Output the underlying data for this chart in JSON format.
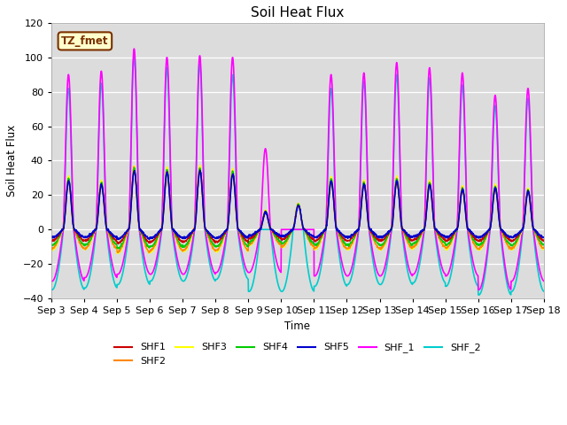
{
  "title": "Soil Heat Flux",
  "xlabel": "Time",
  "ylabel": "Soil Heat Flux",
  "ylim": [
    -40,
    120
  ],
  "xlim": [
    0,
    15
  ],
  "x_tick_labels": [
    "Sep 3",
    "Sep 4",
    "Sep 5",
    "Sep 6",
    "Sep 7",
    "Sep 8",
    "Sep 9",
    "Sep 10",
    "Sep 11",
    "Sep 12",
    "Sep 13",
    "Sep 14",
    "Sep 15",
    "Sep 16",
    "Sep 17",
    "Sep 18"
  ],
  "annotation_text": "TZ_fmet",
  "annotation_color": "#7B3000",
  "annotation_bg": "#FFFFCC",
  "series": {
    "SHF1": {
      "color": "#CC0000",
      "lw": 1.0
    },
    "SHF2": {
      "color": "#FF8800",
      "lw": 1.0
    },
    "SHF3": {
      "color": "#FFFF00",
      "lw": 1.0
    },
    "SHF4": {
      "color": "#00CC00",
      "lw": 1.0
    },
    "SHF5": {
      "color": "#0000CC",
      "lw": 1.2
    },
    "SHF_1": {
      "color": "#FF00FF",
      "lw": 1.2
    },
    "SHF_2": {
      "color": "#00CCCC",
      "lw": 1.2
    }
  },
  "bg_color": "#DCDCDC",
  "title_fontsize": 11,
  "figsize": [
    6.4,
    4.8
  ],
  "dpi": 100
}
